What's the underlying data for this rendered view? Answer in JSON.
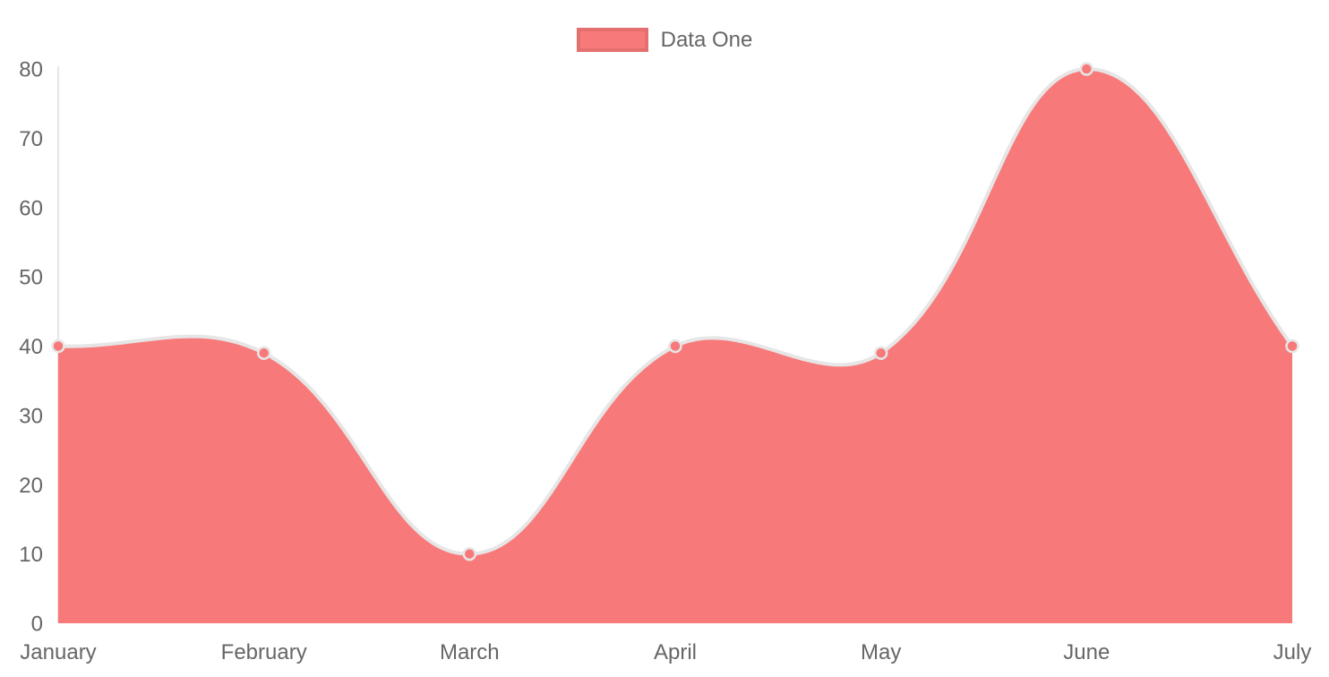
{
  "chart_data": {
    "type": "area",
    "title": "",
    "xlabel": "",
    "ylabel": "",
    "categories": [
      "January",
      "February",
      "March",
      "April",
      "May",
      "June",
      "July"
    ],
    "series": [
      {
        "name": "Data One",
        "values": [
          40,
          39,
          10,
          40,
          39,
          80,
          40
        ]
      }
    ],
    "ylim": [
      0,
      80
    ],
    "yticks": [
      0,
      10,
      20,
      30,
      40,
      50,
      60,
      70,
      80
    ],
    "grid": false,
    "legend_position": "top-center",
    "line_tension": 0.4,
    "legend": [
      {
        "label": "Data One",
        "color": "#f87979"
      }
    ],
    "colors": {
      "fill": "#f87979",
      "point_fill": "#f87979",
      "line_stroke": "#e6e6e6",
      "axis_line": "#e6e6e6",
      "tick_text": "#666666"
    }
  }
}
